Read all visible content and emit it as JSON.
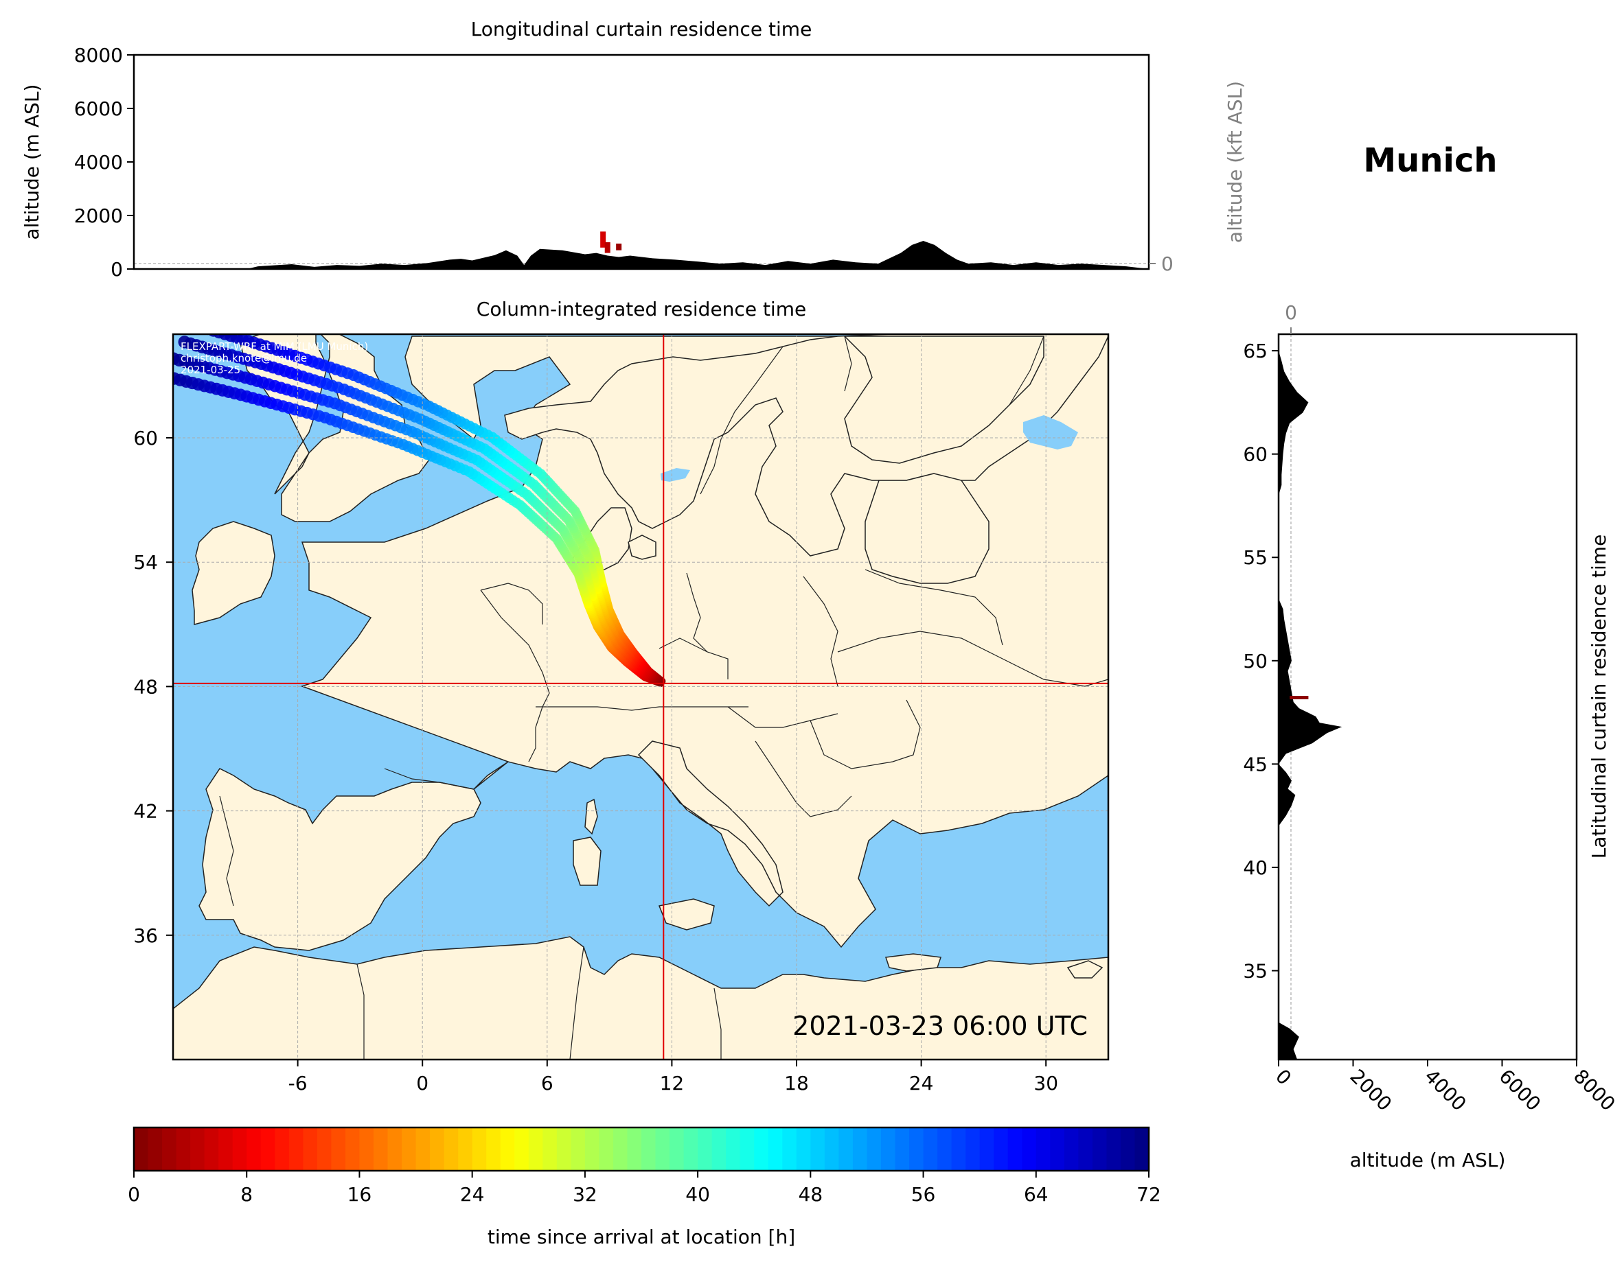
{
  "location_title": "Munich",
  "timestamp": "2021-03-23 06:00 UTC",
  "credits": {
    "line1": "FLEXPART-WRF at MIM (LMU Munich)",
    "line2": "christoph.knote@lmu.de",
    "line3": "2021-03-25"
  },
  "colors": {
    "ocean": "#87cefa",
    "land": "#fff5dc",
    "terrain": "#000000",
    "crosshair": "#e00000",
    "secondary_axis": "#808080"
  },
  "chart_data": [
    {
      "type": "area",
      "id": "longitudinal",
      "title": "Longitudinal curtain residence time",
      "ylabel": "altitude (m ASL)",
      "ylabel_right": "altitude (kft ASL)",
      "xlim": [
        -10,
        35
      ],
      "ylim": [
        0,
        8000
      ],
      "yticks": [
        "0",
        "2000",
        "4000",
        "6000",
        "8000"
      ],
      "right_yticks": [
        "0",
        "50",
        "100"
      ],
      "right_ylim_kft": [
        0,
        26.25
      ],
      "grid": true,
      "terrain": {
        "x": [
          -10,
          -5,
          -4.5,
          -3,
          -2,
          -1,
          0,
          1,
          2,
          3,
          4,
          4.5,
          5,
          5.5,
          6,
          6.5,
          7,
          7.3,
          7.6,
          8,
          9,
          10,
          10.5,
          11,
          11.5,
          12,
          13,
          14,
          15,
          16,
          17,
          18,
          19,
          20,
          21,
          22,
          23,
          23.5,
          24,
          24.5,
          25,
          25.5,
          26,
          26.5,
          27,
          28,
          29,
          30,
          31,
          32,
          33,
          34,
          35
        ],
        "y": [
          0,
          0,
          100,
          180,
          80,
          150,
          120,
          200,
          150,
          220,
          350,
          380,
          320,
          420,
          520,
          700,
          500,
          150,
          500,
          750,
          700,
          550,
          600,
          500,
          450,
          500,
          400,
          350,
          280,
          200,
          250,
          150,
          300,
          200,
          350,
          250,
          200,
          400,
          600,
          900,
          1050,
          900,
          600,
          350,
          200,
          250,
          150,
          250,
          150,
          200,
          150,
          100,
          0
        ]
      },
      "residence_marks": [
        {
          "x": 10.8,
          "altitude": [
            800,
            1400
          ],
          "hours": 6
        },
        {
          "x": 11.0,
          "altitude": [
            600,
            1000
          ],
          "hours": 4
        },
        {
          "x": 11.5,
          "altitude": [
            700,
            950
          ],
          "hours": 2
        }
      ]
    },
    {
      "type": "heatmap",
      "id": "column",
      "title": "Column-integrated residence time",
      "xlim": [
        -12,
        33
      ],
      "ylim": [
        30,
        65
      ],
      "xticks": [
        "-6",
        "0",
        "6",
        "12",
        "18",
        "24",
        "30"
      ],
      "yticks": [
        "36",
        "42",
        "48",
        "54",
        "60"
      ],
      "grid": true,
      "receptor": {
        "lon": 11.6,
        "lat": 48.15
      },
      "plume": [
        {
          "lon": 11.5,
          "lat": 48.2,
          "hours": 0
        },
        {
          "lon": 10.8,
          "lat": 48.6,
          "hours": 6
        },
        {
          "lon": 10.0,
          "lat": 49.4,
          "hours": 12
        },
        {
          "lon": 9.3,
          "lat": 50.2,
          "hours": 17
        },
        {
          "lon": 8.7,
          "lat": 51.3,
          "hours": 22
        },
        {
          "lon": 8.3,
          "lat": 52.5,
          "hours": 27
        },
        {
          "lon": 7.9,
          "lat": 54.0,
          "hours": 32
        },
        {
          "lon": 6.9,
          "lat": 55.8,
          "hours": 37
        },
        {
          "lon": 5.2,
          "lat": 57.5,
          "hours": 42
        },
        {
          "lon": 2.8,
          "lat": 59.2,
          "hours": 47
        },
        {
          "lon": -0.3,
          "lat": 60.6,
          "hours": 53
        },
        {
          "lon": -4.0,
          "lat": 62.0,
          "hours": 59
        },
        {
          "lon": -8.0,
          "lat": 63.2,
          "hours": 65
        },
        {
          "lon": -12.0,
          "lat": 64.3,
          "hours": 71
        }
      ],
      "colorbar": {
        "label": "time since arrival at location [h]",
        "range": [
          0,
          72
        ],
        "ticks": [
          "0",
          "8",
          "16",
          "24",
          "32",
          "40",
          "48",
          "56",
          "64",
          "72"
        ],
        "colormap": "jet_r"
      }
    },
    {
      "type": "area",
      "id": "latitudinal",
      "title": "Latitudinal curtain residence time",
      "xlabel": "altitude (m ASL)",
      "xlim": [
        0,
        8000
      ],
      "ylim": [
        30.7,
        65.8
      ],
      "xticks": [
        "0",
        "2000",
        "4000",
        "6000",
        "8000"
      ],
      "top_xticks": [
        "0",
        "50",
        "100"
      ],
      "top_xlim_kft": [
        0,
        26.25
      ],
      "yticks": [
        "35",
        "40",
        "45",
        "50",
        "55",
        "60",
        "65"
      ],
      "grid": true,
      "terrain": {
        "lat": [
          30.7,
          31.2,
          31.8,
          32.2,
          32.5,
          33,
          36,
          40,
          42,
          42.5,
          43,
          43.5,
          43.8,
          44.2,
          44.6,
          45,
          45.5,
          46,
          46.5,
          46.8,
          47,
          47.3,
          47.7,
          48,
          48.5,
          49,
          49.5,
          50,
          50.5,
          51,
          51.5,
          52,
          52.5,
          53,
          54,
          56,
          58,
          58.5,
          59,
          59.5,
          60,
          60.5,
          61,
          61.5,
          62,
          62.5,
          63,
          63.5,
          64,
          64.5,
          65,
          65.8
        ],
        "alt": [
          500,
          400,
          550,
          300,
          0,
          0,
          0,
          0,
          0,
          200,
          350,
          450,
          250,
          350,
          200,
          0,
          200,
          900,
          1300,
          1700,
          1100,
          1000,
          550,
          400,
          350,
          300,
          250,
          350,
          300,
          250,
          200,
          150,
          120,
          0,
          0,
          0,
          0,
          80,
          80,
          100,
          120,
          150,
          200,
          300,
          650,
          800,
          500,
          300,
          150,
          80,
          0,
          0
        ]
      },
      "residence_marks": [
        {
          "lat": 48.2,
          "altitude": [
            300,
            800
          ],
          "hours": 1
        }
      ]
    }
  ]
}
